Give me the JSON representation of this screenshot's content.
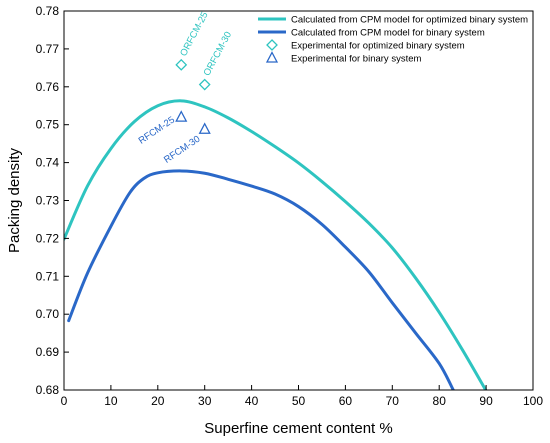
{
  "chart_data": {
    "type": "line",
    "xlabel": "Superfine cement content %",
    "ylabel": "Packing density",
    "xlim": [
      0,
      100
    ],
    "ylim": [
      0.68,
      0.78
    ],
    "x_ticks": [
      0,
      10,
      20,
      30,
      40,
      50,
      60,
      70,
      80,
      90,
      100
    ],
    "y_ticks": [
      0.68,
      0.69,
      0.7,
      0.71,
      0.72,
      0.73,
      0.74,
      0.75,
      0.76,
      0.77,
      0.78
    ],
    "grid": false,
    "legend_position": "top-right",
    "colors": {
      "optimized": "#2ec4c0",
      "binary": "#2a68c8"
    },
    "series": [
      {
        "name": "Calculated from CPM model for optimized binary system",
        "kind": "line",
        "color": "#2ec4c0",
        "x": [
          0,
          5,
          10,
          15,
          20,
          25,
          30,
          35,
          40,
          45,
          50,
          55,
          60,
          65,
          70,
          75,
          80,
          85,
          90
        ],
        "y": [
          0.7198,
          0.7338,
          0.7437,
          0.7508,
          0.755,
          0.7563,
          0.7547,
          0.7518,
          0.7482,
          0.7442,
          0.7399,
          0.735,
          0.7297,
          0.724,
          0.7175,
          0.7095,
          0.7005,
          0.6905,
          0.6798
        ]
      },
      {
        "name": "Calculated from CPM model for binary system",
        "kind": "line",
        "color": "#2a68c8",
        "x": [
          1,
          5,
          10,
          14,
          17,
          20,
          25,
          30,
          35,
          40,
          45,
          50,
          55,
          60,
          65,
          70,
          75,
          80,
          83
        ],
        "y": [
          0.6983,
          0.7108,
          0.7232,
          0.732,
          0.7358,
          0.7373,
          0.7378,
          0.7372,
          0.7356,
          0.7338,
          0.7317,
          0.7284,
          0.7237,
          0.7177,
          0.7112,
          0.703,
          0.695,
          0.687,
          0.68
        ]
      },
      {
        "name": "Experimental for optimized binary system",
        "kind": "marker",
        "marker": "diamond",
        "color": "#2ec4c0",
        "x": [
          25,
          30
        ],
        "y": [
          0.7658,
          0.7606
        ],
        "labels": [
          "ORFCM-25",
          "ORFCM-30"
        ]
      },
      {
        "name": "Experimental for binary system",
        "kind": "marker",
        "marker": "triangle",
        "color": "#2a68c8",
        "x": [
          25,
          30
        ],
        "y": [
          0.752,
          0.7488
        ],
        "labels": [
          "RFCM-25",
          "RFCM-30"
        ]
      }
    ]
  }
}
